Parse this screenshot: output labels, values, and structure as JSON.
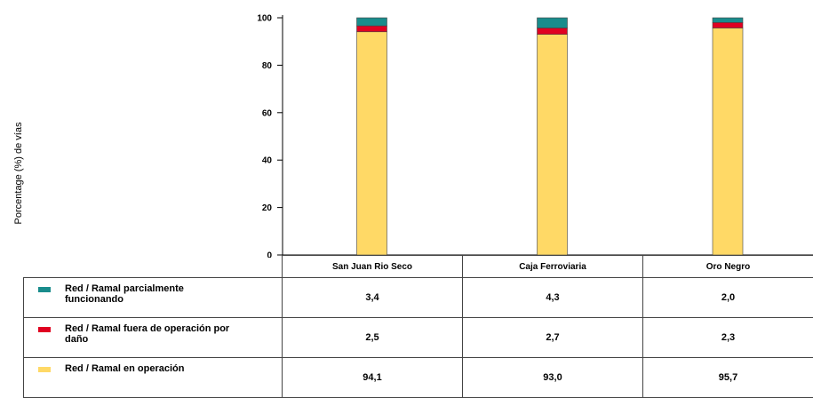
{
  "chart_data": {
    "type": "bar",
    "stacked": true,
    "ylabel": "Porcentage  (%) de vías",
    "ylim": [
      0,
      100
    ],
    "yticks": [
      "0",
      "20",
      "40",
      "60",
      "80",
      "100"
    ],
    "categories": [
      "San Juan Rio Seco",
      "Caja Ferroviaria",
      "Oro Negro"
    ],
    "series": [
      {
        "name": "Red / Ramal en operación",
        "color": "#FFD966",
        "values": [
          94.1,
          93.0,
          95.7
        ],
        "labels": [
          "94,1",
          "93,0",
          "95,7"
        ]
      },
      {
        "name": "Red / Ramal fuera de operación por daño",
        "color": "#E00021",
        "values": [
          2.5,
          2.7,
          2.3
        ],
        "labels": [
          "2,5",
          "2,7",
          "2,3"
        ]
      },
      {
        "name": "Red / Ramal parcialmente funcionando",
        "color": "#1A8C8C",
        "values": [
          3.4,
          4.3,
          2.0
        ],
        "labels": [
          "3,4",
          "4,3",
          "2,0"
        ]
      }
    ],
    "grid": false,
    "legend": "table-left"
  }
}
